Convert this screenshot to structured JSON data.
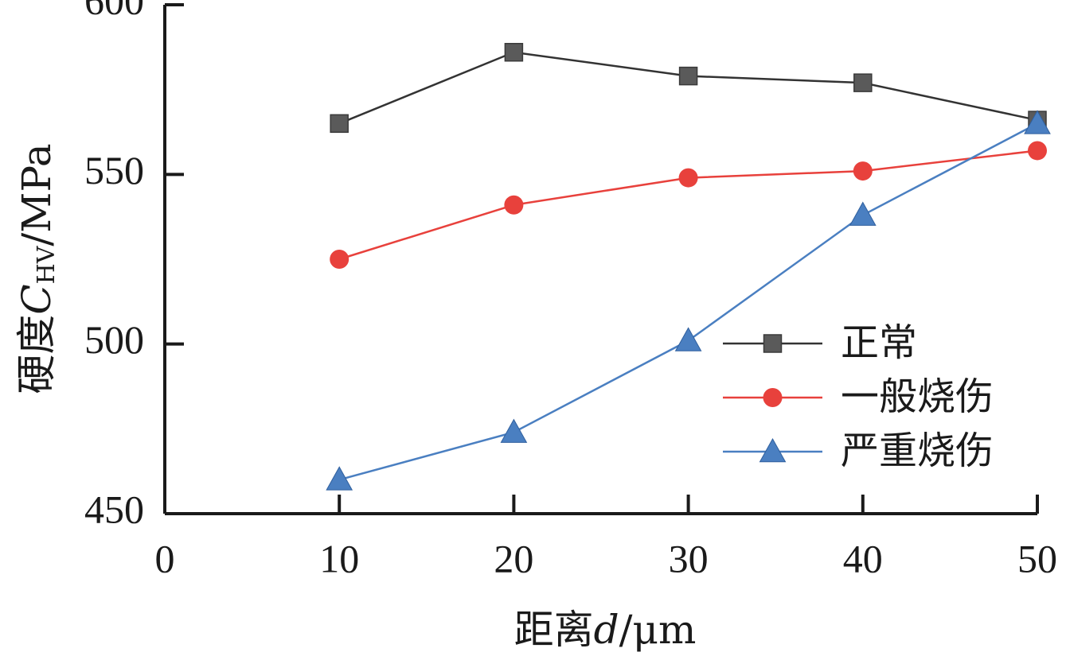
{
  "chart_data": {
    "type": "line",
    "x": [
      10,
      20,
      30,
      40,
      50
    ],
    "xlim": [
      0,
      50
    ],
    "ylim": [
      450,
      600
    ],
    "xticks": [
      "0",
      "10",
      "20",
      "30",
      "40",
      "50"
    ],
    "yticks": [
      "450",
      "500",
      "550",
      "600"
    ],
    "xlabel": {
      "prefix": "距离",
      "var": "d",
      "unit": "/μm"
    },
    "ylabel": {
      "prefix": "硬度",
      "var": "C",
      "sub": "HV",
      "unit": "/MPa"
    },
    "grid": false,
    "legend_position": "right",
    "series": [
      {
        "name": "正常",
        "values": [
          565,
          586,
          579,
          577,
          566
        ],
        "color": "#333333",
        "marker": "square-filled",
        "marker_color": "#5a5a5a"
      },
      {
        "name": "一般烧伤",
        "values": [
          525,
          541,
          549,
          551,
          557
        ],
        "color": "#e8413c",
        "marker": "circle-filled",
        "marker_color": "#e8413c"
      },
      {
        "name": "严重烧伤",
        "values": [
          460,
          474,
          501,
          538,
          565
        ],
        "color": "#4a7fc1",
        "marker": "triangle-filled",
        "marker_color": "#4a7fc1"
      }
    ]
  }
}
